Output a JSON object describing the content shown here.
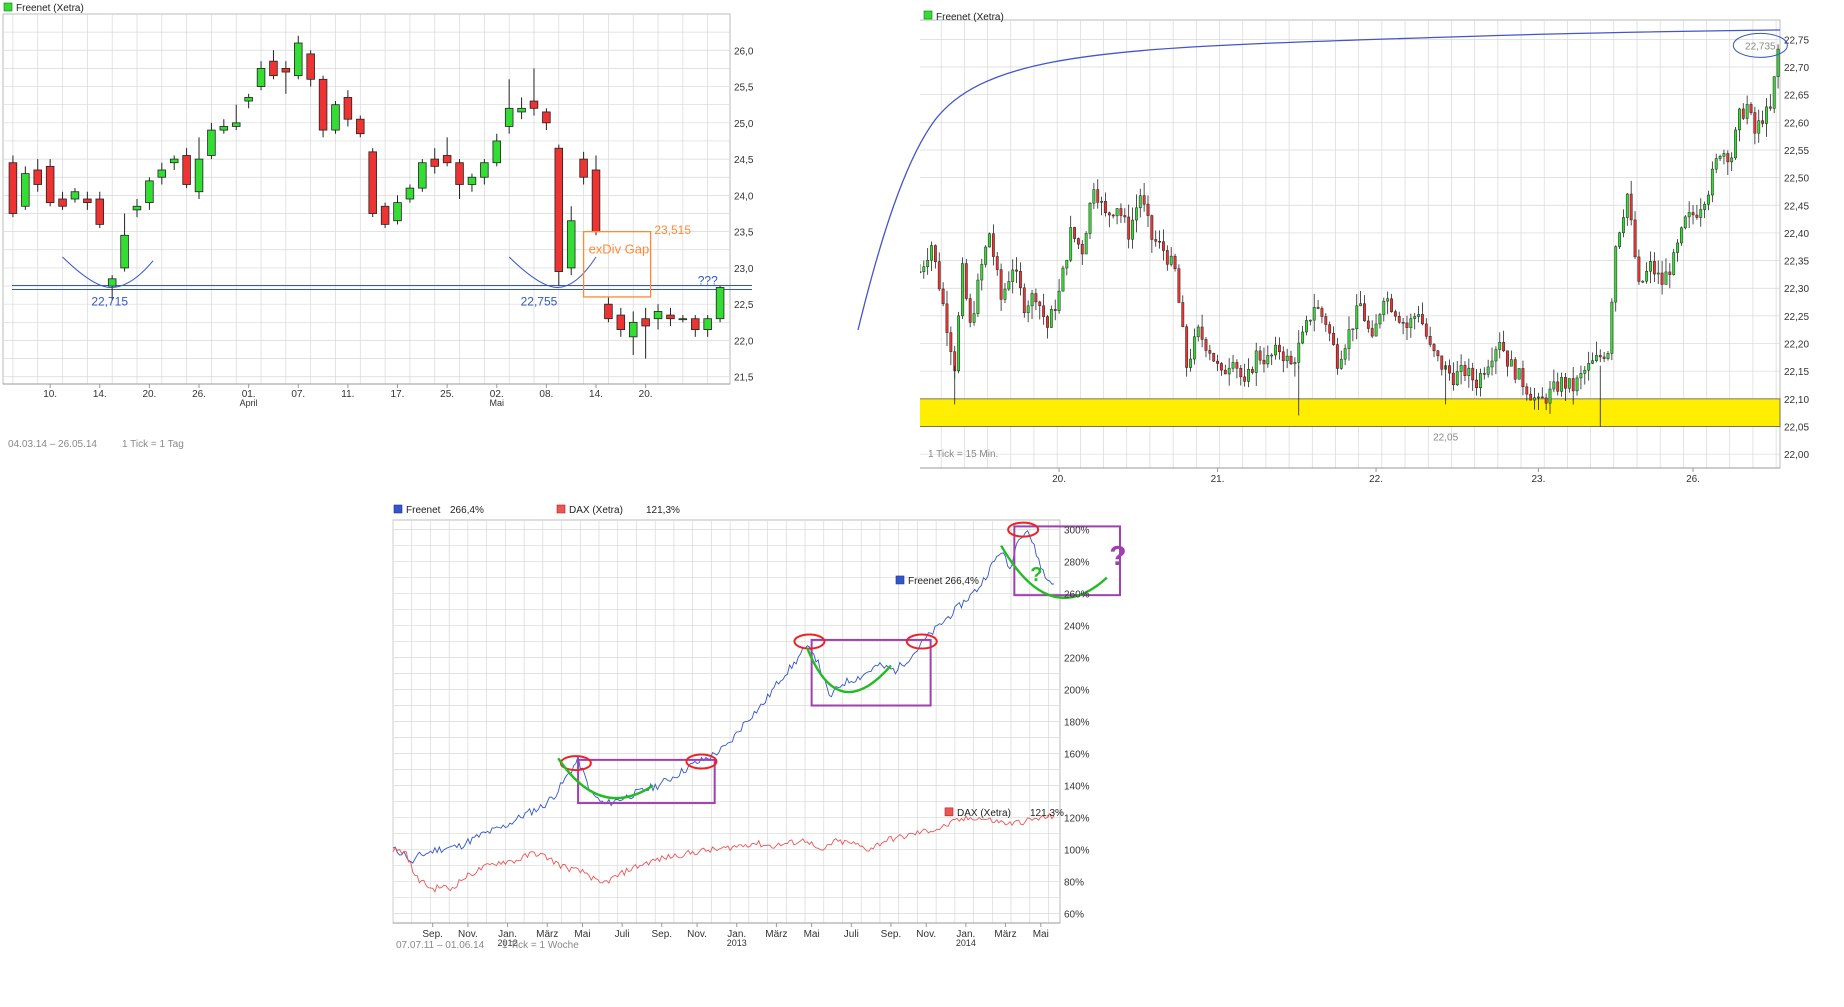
{
  "colors": {
    "up": "#33dd33",
    "down": "#ee3333",
    "grid": "#d8d8d8",
    "blue": "#3355cc",
    "orange": "#ff8833",
    "purple": "#a040b0",
    "ellipse": "#ee2222",
    "green_curve": "#22bb22",
    "yellow": "#ffee00",
    "dax": "#ee5555"
  },
  "chart_data": [
    {
      "type": "candlestick",
      "title": "Freenet (Xetra)",
      "period_label": "04.03.14 – 26.05.14",
      "tick_label": "1 Tick = 1 Tag",
      "x_ticks": [
        {
          "i": 3,
          "label": "10."
        },
        {
          "i": 7,
          "label": "14."
        },
        {
          "i": 11,
          "label": "20."
        },
        {
          "i": 15,
          "label": "26."
        },
        {
          "i": 19,
          "label": "01.",
          "sub": "April"
        },
        {
          "i": 23,
          "label": "07."
        },
        {
          "i": 27,
          "label": "11."
        },
        {
          "i": 31,
          "label": "17."
        },
        {
          "i": 35,
          "label": "25."
        },
        {
          "i": 39,
          "label": "02.",
          "sub": "Mai"
        },
        {
          "i": 43,
          "label": "08."
        },
        {
          "i": 47,
          "label": "14."
        },
        {
          "i": 51,
          "label": "20."
        }
      ],
      "y_ticks": [
        "21,5",
        "22,0",
        "22,5",
        "23,0",
        "23,5",
        "24,0",
        "24,5",
        "25,0",
        "25,5",
        "26,0"
      ],
      "ylim": [
        21.4,
        26.5
      ],
      "candles": [
        [
          24.45,
          24.55,
          23.7,
          23.75
        ],
        [
          23.85,
          24.4,
          23.8,
          24.3
        ],
        [
          24.35,
          24.5,
          24.05,
          24.15
        ],
        [
          24.4,
          24.5,
          23.85,
          23.9
        ],
        [
          23.95,
          24.05,
          23.8,
          23.85
        ],
        [
          23.95,
          24.1,
          23.9,
          24.05
        ],
        [
          23.95,
          24.05,
          23.8,
          23.9
        ],
        [
          23.95,
          24.05,
          23.55,
          23.6
        ],
        [
          22.75,
          22.9,
          22.55,
          22.85
        ],
        [
          23.0,
          23.75,
          22.95,
          23.45
        ],
        [
          23.8,
          23.95,
          23.7,
          23.85
        ],
        [
          23.9,
          24.25,
          23.8,
          24.2
        ],
        [
          24.25,
          24.45,
          24.15,
          24.35
        ],
        [
          24.45,
          24.55,
          24.35,
          24.5
        ],
        [
          24.55,
          24.65,
          24.1,
          24.15
        ],
        [
          24.05,
          24.8,
          23.95,
          24.5
        ],
        [
          24.55,
          25.0,
          24.5,
          24.9
        ],
        [
          24.9,
          25.05,
          24.85,
          24.95
        ],
        [
          24.95,
          25.25,
          24.9,
          25.0
        ],
        [
          25.3,
          25.4,
          25.2,
          25.35
        ],
        [
          25.5,
          25.85,
          25.45,
          25.75
        ],
        [
          25.85,
          26.0,
          25.6,
          25.65
        ],
        [
          25.75,
          25.85,
          25.4,
          25.7
        ],
        [
          25.65,
          26.2,
          25.6,
          26.1
        ],
        [
          25.95,
          26.0,
          25.5,
          25.6
        ],
        [
          25.6,
          25.65,
          24.8,
          24.9
        ],
        [
          24.9,
          25.3,
          24.85,
          25.25
        ],
        [
          25.35,
          25.45,
          24.95,
          25.05
        ],
        [
          25.05,
          25.1,
          24.8,
          24.85
        ],
        [
          24.6,
          24.65,
          23.7,
          23.75
        ],
        [
          23.85,
          23.9,
          23.55,
          23.6
        ],
        [
          23.65,
          24.0,
          23.6,
          23.9
        ],
        [
          23.95,
          24.15,
          23.9,
          24.1
        ],
        [
          24.1,
          24.5,
          24.05,
          24.45
        ],
        [
          24.5,
          24.65,
          24.3,
          24.4
        ],
        [
          24.55,
          24.8,
          24.4,
          24.45
        ],
        [
          24.45,
          24.5,
          23.95,
          24.15
        ],
        [
          24.15,
          24.3,
          24.05,
          24.25
        ],
        [
          24.25,
          24.5,
          24.15,
          24.45
        ],
        [
          24.45,
          24.85,
          24.4,
          24.75
        ],
        [
          24.95,
          25.6,
          24.85,
          25.2
        ],
        [
          25.15,
          25.35,
          25.05,
          25.2
        ],
        [
          25.3,
          25.75,
          25.1,
          25.2
        ],
        [
          25.15,
          25.2,
          24.9,
          25.0
        ],
        [
          24.65,
          24.7,
          22.75,
          22.95
        ],
        [
          23.0,
          23.85,
          22.9,
          23.65
        ],
        [
          24.5,
          24.6,
          24.15,
          24.25
        ],
        [
          24.35,
          24.55,
          23.45,
          23.5
        ],
        [
          22.5,
          22.6,
          22.25,
          22.3
        ],
        [
          22.35,
          22.45,
          22.05,
          22.15
        ],
        [
          22.05,
          22.4,
          21.8,
          22.25
        ],
        [
          22.3,
          22.45,
          21.75,
          22.2
        ],
        [
          22.3,
          22.5,
          22.15,
          22.4
        ],
        [
          22.35,
          22.45,
          22.2,
          22.3
        ],
        [
          22.3,
          22.35,
          22.25,
          22.3
        ],
        [
          22.3,
          22.35,
          22.05,
          22.15
        ],
        [
          22.15,
          22.35,
          22.05,
          22.3
        ],
        [
          22.3,
          22.75,
          22.25,
          22.73
        ]
      ],
      "level_line": 22.73,
      "annotations": {
        "low1": "22,715",
        "low2": "22,755",
        "gap_label": "exDiv Gap",
        "gap_top": "23,515",
        "question": "???"
      }
    },
    {
      "type": "candlestick",
      "title": "Freenet (Xetra)",
      "tick_label": "1 Tick = 15 Min.",
      "x_ticks": [
        "20.",
        "21.",
        "22.",
        "23.",
        "26."
      ],
      "y_ticks": [
        "22,00",
        "22,05",
        "22,10",
        "22,15",
        "22,20",
        "22,25",
        "22,30",
        "22,35",
        "22,40",
        "22,45",
        "22,50",
        "22,55",
        "22,60",
        "22,65",
        "22,70",
        "22,75"
      ],
      "ylim": [
        21.975,
        22.785
      ],
      "support_zone": [
        22.05,
        22.1
      ],
      "support_label": "22,05",
      "peak_label": "22,735",
      "path": [
        [
          0,
          22.33
        ],
        [
          3,
          22.38
        ],
        [
          6,
          22.27
        ],
        [
          9,
          22.16
        ],
        [
          11,
          22.33
        ],
        [
          13,
          22.23
        ],
        [
          16,
          22.34
        ],
        [
          18,
          22.4
        ],
        [
          21,
          22.28
        ],
        [
          24,
          22.34
        ],
        [
          27,
          22.27
        ],
        [
          30,
          22.29
        ],
        [
          33,
          22.23
        ],
        [
          36,
          22.29
        ],
        [
          39,
          22.4
        ],
        [
          42,
          22.37
        ],
        [
          45,
          22.49
        ],
        [
          48,
          22.43
        ],
        [
          51,
          22.45
        ],
        [
          54,
          22.4
        ],
        [
          57,
          22.47
        ],
        [
          60,
          22.39
        ],
        [
          63,
          22.37
        ],
        [
          66,
          22.33
        ],
        [
          69,
          22.16
        ],
        [
          72,
          22.22
        ],
        [
          75,
          22.19
        ],
        [
          78,
          22.14
        ],
        [
          81,
          22.18
        ],
        [
          84,
          22.12
        ],
        [
          87,
          22.18
        ],
        [
          90,
          22.17
        ],
        [
          93,
          22.19
        ],
        [
          96,
          22.16
        ],
        [
          99,
          22.21
        ],
        [
          102,
          22.27
        ],
        [
          105,
          22.24
        ],
        [
          108,
          22.17
        ],
        [
          111,
          22.22
        ],
        [
          114,
          22.27
        ],
        [
          117,
          22.2
        ],
        [
          120,
          22.29
        ],
        [
          123,
          22.26
        ],
        [
          126,
          22.23
        ],
        [
          129,
          22.26
        ],
        [
          132,
          22.19
        ],
        [
          135,
          22.16
        ],
        [
          138,
          22.14
        ],
        [
          141,
          22.15
        ],
        [
          144,
          22.13
        ],
        [
          147,
          22.17
        ],
        [
          150,
          22.21
        ],
        [
          152,
          22.17
        ],
        [
          154,
          22.15
        ],
        [
          157,
          22.12
        ],
        [
          160,
          22.09
        ],
        [
          163,
          22.11
        ],
        [
          166,
          22.13
        ],
        [
          169,
          22.12
        ],
        [
          172,
          22.15
        ],
        [
          175,
          22.17
        ],
        [
          178,
          22.19
        ],
        [
          180,
          22.38
        ],
        [
          183,
          22.47
        ],
        [
          186,
          22.3
        ],
        [
          189,
          22.34
        ],
        [
          192,
          22.31
        ],
        [
          195,
          22.35
        ],
        [
          198,
          22.42
        ],
        [
          201,
          22.44
        ],
        [
          204,
          22.48
        ],
        [
          207,
          22.55
        ],
        [
          210,
          22.54
        ],
        [
          212,
          22.61
        ],
        [
          214,
          22.63
        ],
        [
          216,
          22.58
        ],
        [
          218,
          22.61
        ],
        [
          220,
          22.62
        ],
        [
          222,
          22.73
        ]
      ],
      "n_bars": 223
    },
    {
      "type": "line",
      "period_label": "07.07.11 – 01.06.14",
      "tick_label": "1 Tick = 1 Woche",
      "legend": [
        {
          "name": "Freenet",
          "value": "266,4%"
        },
        {
          "name": "DAX  (Xetra)",
          "value": "121,3%"
        }
      ],
      "x_ticks": [
        {
          "i": 9,
          "label": "Sep."
        },
        {
          "i": 17,
          "label": "Nov."
        },
        {
          "i": 26,
          "label": "Jan.",
          "sub": "2012"
        },
        {
          "i": 35,
          "label": "März"
        },
        {
          "i": 43,
          "label": "Mai"
        },
        {
          "i": 52,
          "label": "Juli"
        },
        {
          "i": 61,
          "label": "Sep."
        },
        {
          "i": 69,
          "label": "Nov."
        },
        {
          "i": 78,
          "label": "Jan.",
          "sub": "2013"
        },
        {
          "i": 87,
          "label": "März"
        },
        {
          "i": 95,
          "label": "Mai"
        },
        {
          "i": 104,
          "label": "Juli"
        },
        {
          "i": 113,
          "label": "Sep."
        },
        {
          "i": 121,
          "label": "Nov."
        },
        {
          "i": 130,
          "label": "Jan.",
          "sub": "2014"
        },
        {
          "i": 139,
          "label": "März"
        },
        {
          "i": 147,
          "label": "Mai"
        }
      ],
      "y_ticks": [
        "60%",
        "80%",
        "100%",
        "120%",
        "140%",
        "160%",
        "180%",
        "200%",
        "220%",
        "240%",
        "260%",
        "280%",
        "300%"
      ],
      "ylim": [
        54,
        306
      ],
      "series": [
        {
          "name": "Freenet",
          "end_value": "266,4%",
          "points": [
            [
              0,
              100
            ],
            [
              3,
              97
            ],
            [
              4,
              91
            ],
            [
              6,
              96
            ],
            [
              10,
              100
            ],
            [
              15,
              102
            ],
            [
              20,
              109
            ],
            [
              25,
              114
            ],
            [
              30,
              122
            ],
            [
              34,
              127
            ],
            [
              37,
              135
            ],
            [
              40,
              148
            ],
            [
              42,
              156
            ],
            [
              45,
              135
            ],
            [
              48,
              128
            ],
            [
              52,
              132
            ],
            [
              56,
              136
            ],
            [
              60,
              140
            ],
            [
              64,
              146
            ],
            [
              68,
              153
            ],
            [
              72,
              158
            ],
            [
              76,
              165
            ],
            [
              80,
              180
            ],
            [
              84,
              191
            ],
            [
              88,
              207
            ],
            [
              91,
              216
            ],
            [
              93,
              224
            ],
            [
              95,
              226
            ],
            [
              97,
              213
            ],
            [
              99,
              195
            ],
            [
              102,
              204
            ],
            [
              106,
              208
            ],
            [
              110,
              215
            ],
            [
              114,
              212
            ],
            [
              118,
              222
            ],
            [
              121,
              232
            ],
            [
              124,
              240
            ],
            [
              127,
              248
            ],
            [
              130,
              256
            ],
            [
              133,
              264
            ],
            [
              136,
              278
            ],
            [
              138,
              287
            ],
            [
              140,
              275
            ],
            [
              142,
              296
            ],
            [
              144,
              300
            ],
            [
              146,
              285
            ],
            [
              148,
              270
            ],
            [
              150,
              266
            ]
          ]
        },
        {
          "name": "DAX  (Xetra)",
          "end_value": "121,3%",
          "points": [
            [
              0,
              100
            ],
            [
              3,
              98
            ],
            [
              5,
              83
            ],
            [
              7,
              79
            ],
            [
              9,
              75
            ],
            [
              11,
              77
            ],
            [
              13,
              75
            ],
            [
              16,
              82
            ],
            [
              20,
              88
            ],
            [
              24,
              92
            ],
            [
              28,
              93
            ],
            [
              32,
              98
            ],
            [
              35,
              95
            ],
            [
              38,
              90
            ],
            [
              40,
              88
            ],
            [
              44,
              85
            ],
            [
              47,
              78
            ],
            [
              50,
              82
            ],
            [
              54,
              88
            ],
            [
              58,
              92
            ],
            [
              62,
              95
            ],
            [
              66,
              97
            ],
            [
              70,
              99
            ],
            [
              74,
              100
            ],
            [
              78,
              102
            ],
            [
              82,
              104
            ],
            [
              86,
              102
            ],
            [
              90,
              104
            ],
            [
              94,
              106
            ],
            [
              97,
              98
            ],
            [
              100,
              105
            ],
            [
              104,
              104
            ],
            [
              108,
              100
            ],
            [
              112,
              106
            ],
            [
              116,
              108
            ],
            [
              120,
              111
            ],
            [
              124,
              113
            ],
            [
              128,
              118
            ],
            [
              132,
              120
            ],
            [
              136,
              118
            ],
            [
              140,
              116
            ],
            [
              144,
              118
            ],
            [
              148,
              120
            ],
            [
              150,
              121
            ]
          ]
        }
      ],
      "annotations": {
        "right_question": "?",
        "inner_question": "?"
      }
    }
  ]
}
